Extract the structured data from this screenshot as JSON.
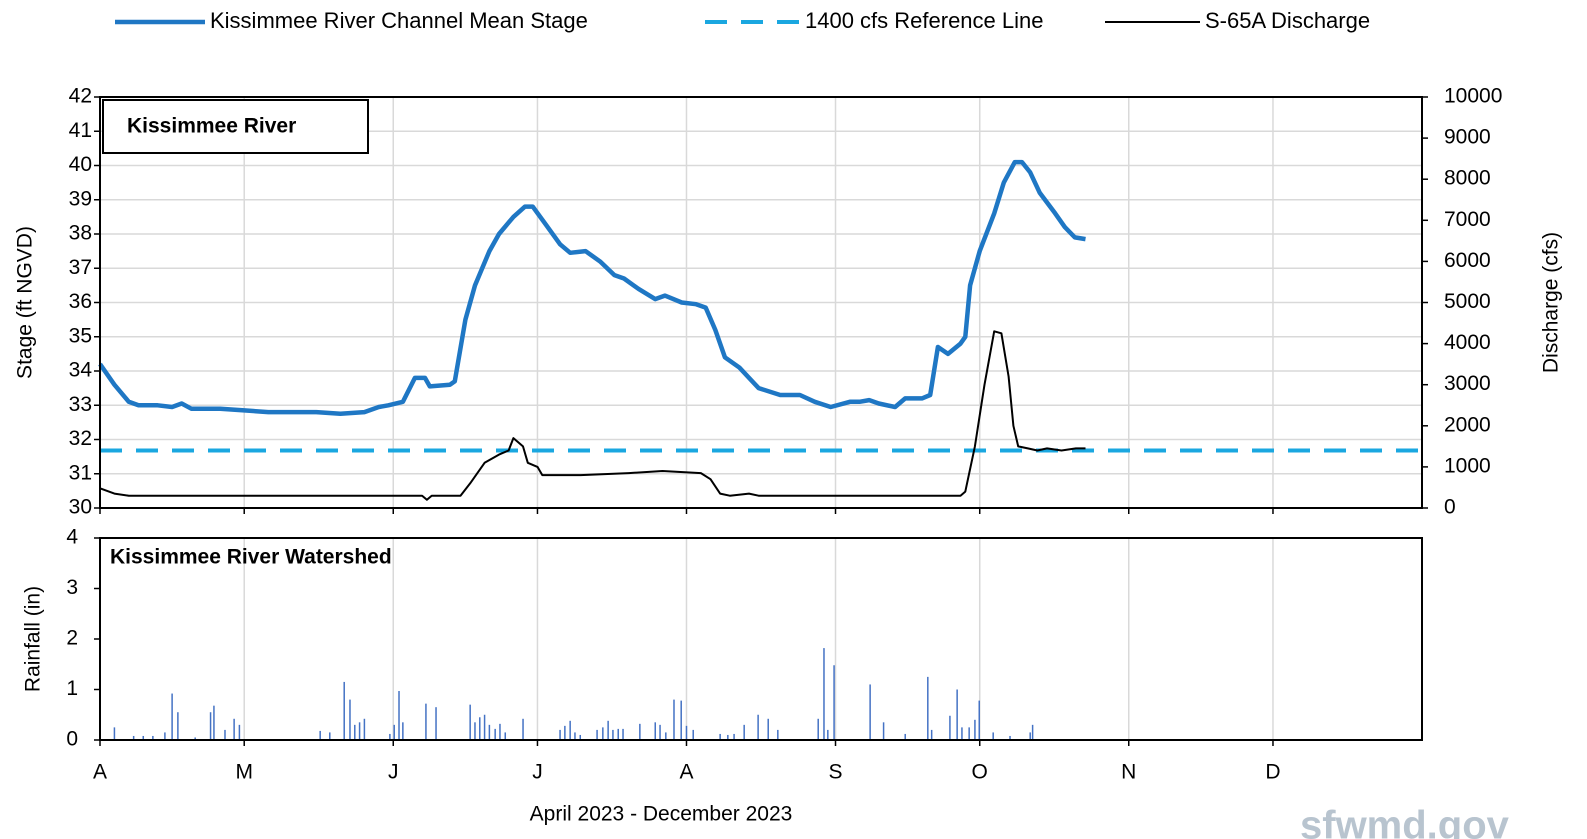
{
  "legend_position": "top",
  "watermark": "sfwmd.gov",
  "chart_data": [
    {
      "type": "line",
      "panel_label": "Kissimmee  River",
      "ylabel": "Stage  (ft NGVD)",
      "y2label": "Discharge  (cfs)",
      "xlim": [
        0,
        275
      ],
      "ylim": [
        30,
        42
      ],
      "yticks": [
        30,
        31,
        32,
        33,
        34,
        35,
        36,
        37,
        38,
        39,
        40,
        41,
        42
      ],
      "y2lim": [
        0,
        10000
      ],
      "y2ticks": [
        0,
        1000,
        2000,
        3000,
        4000,
        5000,
        6000,
        7000,
        8000,
        9000,
        10000
      ],
      "grid": true,
      "series": [
        {
          "name": "Kissimmee River  Channel  Mean Stage",
          "color": "#1f77c4",
          "x": [
            0,
            3,
            6,
            8,
            12,
            15,
            17,
            19,
            25,
            30,
            35,
            40,
            45,
            50,
            55,
            58,
            60,
            63,
            65.5,
            67.6,
            68.6,
            72.8,
            73.8,
            76,
            78,
            81,
            83,
            86,
            88.4,
            90,
            92.6,
            95.7,
            97.8,
            101,
            104,
            107,
            109,
            112,
            115.5,
            117.5,
            121,
            124,
            126,
            128,
            130,
            133,
            137,
            141.5,
            145.6,
            148.7,
            152,
            156,
            158,
            160,
            162,
            165.4,
            167.5,
            171,
            172.7,
            174.3,
            176.4,
            179,
            180,
            181,
            183,
            186,
            188,
            190.3,
            191.8,
            193.5,
            195.5,
            198.7,
            200.7,
            202.8,
            205
          ],
          "values": [
            34.2,
            33.6,
            33.1,
            33,
            33,
            32.95,
            33.05,
            32.9,
            32.9,
            32.85,
            32.8,
            32.8,
            32.8,
            32.75,
            32.8,
            32.95,
            33,
            33.1,
            33.8,
            33.8,
            33.55,
            33.6,
            33.7,
            35.5,
            36.5,
            37.5,
            38,
            38.5,
            38.8,
            38.8,
            38.3,
            37.7,
            37.45,
            37.5,
            37.2,
            36.8,
            36.7,
            36.4,
            36.1,
            36.2,
            36,
            35.95,
            35.85,
            35.2,
            34.4,
            34.1,
            33.5,
            33.3,
            33.3,
            33.1,
            32.95,
            33.1,
            33.1,
            33.15,
            33.05,
            32.95,
            33.2,
            33.2,
            33.3,
            34.7,
            34.5,
            34.8,
            35,
            36.5,
            37.5,
            38.6,
            39.5,
            40.1,
            40.1,
            39.8,
            39.2,
            38.6,
            38.2,
            37.9,
            37.85
          ]
        },
        {
          "name": "S-65A Discharge",
          "color": "#000000",
          "axis": "y2",
          "x": [
            0,
            3,
            6,
            67,
            68,
            69,
            75,
            77,
            80,
            83,
            85,
            86,
            88,
            89,
            91,
            92,
            100,
            110,
            117,
            125,
            127,
            129,
            131,
            135,
            137,
            175,
            179,
            180,
            182,
            184,
            186,
            187.5,
            189,
            190,
            191,
            193,
            195,
            197,
            200,
            203,
            205
          ],
          "values": [
            480,
            350,
            300,
            300,
            200,
            300,
            300,
            600,
            1100,
            1300,
            1400,
            1700,
            1500,
            1100,
            1000,
            800,
            800,
            850,
            900,
            850,
            700,
            350,
            300,
            350,
            300,
            300,
            300,
            400,
            1500,
            3000,
            4300,
            4250,
            3200,
            2000,
            1500,
            1450,
            1400,
            1450,
            1400,
            1450,
            1450
          ]
        }
      ],
      "reference_line": {
        "name": "1400 cfs Reference Line",
        "color": "#1aa7e0",
        "value": 1400,
        "axis": "y2"
      }
    },
    {
      "type": "bar",
      "panel_label": "Kissimmee  River Watershed",
      "ylabel": "Rainfall  (in)",
      "xlabel": "April 2023 - December 2023",
      "xlim": [
        0,
        275
      ],
      "ylim": [
        0,
        4
      ],
      "yticks": [
        0,
        1,
        2,
        3,
        4
      ],
      "color": "#4472c4",
      "xticks": [
        {
          "value": 0,
          "label": "A"
        },
        {
          "value": 30,
          "label": "M"
        },
        {
          "value": 61,
          "label": "J"
        },
        {
          "value": 91,
          "label": "J"
        },
        {
          "value": 122,
          "label": "A"
        },
        {
          "value": 153,
          "label": "S"
        },
        {
          "value": 183,
          "label": "O"
        },
        {
          "value": 214,
          "label": "N"
        },
        {
          "value": 244,
          "label": "D"
        }
      ],
      "x": [
        3,
        7,
        9,
        11,
        13.5,
        15,
        16.2,
        19.8,
        23,
        23.7,
        26,
        27.9,
        29,
        45.8,
        47.8,
        50.8,
        52,
        53,
        54,
        55,
        60.3,
        61.2,
        62.2,
        63,
        67.8,
        69.9,
        77,
        78,
        79,
        80,
        81,
        82.2,
        83.2,
        84.3,
        88,
        95.7,
        96.7,
        97.8,
        98.8,
        99.9,
        103.4,
        104.6,
        105.7,
        106.7,
        107.8,
        108.8,
        112.3,
        115.5,
        116.5,
        117.7,
        119.4,
        120.9,
        122,
        123.4,
        129,
        130.6,
        131.9,
        134,
        136.9,
        139,
        141,
        149.4,
        150.6,
        151.4,
        152.7,
        160.2,
        163,
        167.5,
        172.2,
        173,
        176.8,
        178.3,
        179.3,
        180.8,
        182,
        182.9,
        185.8,
        189.3,
        193.5,
        194
      ],
      "values": [
        0.25,
        0.08,
        0.08,
        0.08,
        0.15,
        0.92,
        0.55,
        0.05,
        0.55,
        0.68,
        0.2,
        0.42,
        0.3,
        0.18,
        0.15,
        1.15,
        0.8,
        0.3,
        0.35,
        0.42,
        0.12,
        0.3,
        0.97,
        0.35,
        0.72,
        0.65,
        0.7,
        0.35,
        0.45,
        0.5,
        0.3,
        0.22,
        0.32,
        0.15,
        0.42,
        0.2,
        0.28,
        0.38,
        0.15,
        0.1,
        0.2,
        0.25,
        0.38,
        0.2,
        0.22,
        0.22,
        0.32,
        0.35,
        0.3,
        0.15,
        0.8,
        0.78,
        0.28,
        0.2,
        0.12,
        0.1,
        0.12,
        0.3,
        0.5,
        0.42,
        0.2,
        0.42,
        1.82,
        0.2,
        1.48,
        1.1,
        0.35,
        0.12,
        1.25,
        0.2,
        0.48,
        1,
        0.25,
        0.25,
        0.4,
        0.78,
        0.15,
        0.08,
        0.15,
        0.3
      ]
    }
  ]
}
